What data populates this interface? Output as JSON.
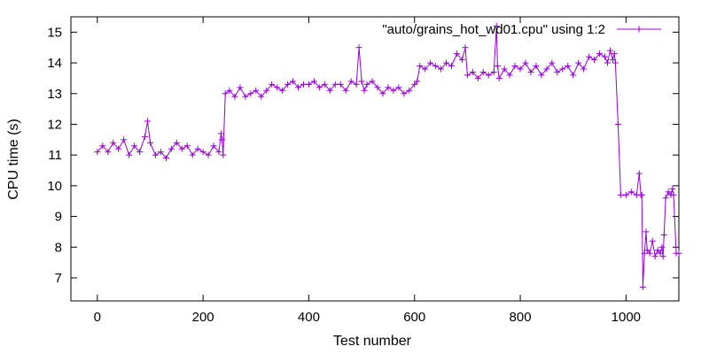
{
  "chart_data": {
    "type": "line",
    "title": "",
    "xlabel": "Test number",
    "ylabel": "CPU time (s)",
    "xlim": [
      -50,
      1100
    ],
    "ylim": [
      6.25,
      15.5
    ],
    "xticks": [
      0,
      200,
      400,
      600,
      800,
      1000
    ],
    "yticks": [
      7,
      8,
      9,
      10,
      11,
      12,
      13,
      14,
      15
    ],
    "xtick_labels": [
      "0",
      "200",
      "400",
      "600",
      "800",
      "1000"
    ],
    "ytick_labels": [
      "7",
      "8",
      "9",
      "10",
      "11",
      "12",
      "13",
      "14",
      "15"
    ],
    "grid": false,
    "legend_position": "top-right",
    "series": [
      {
        "name": "\"auto/grains_hot_wd01.cpu\" using 1:2",
        "color": "#9400d3",
        "marker": "plus",
        "x": [
          0,
          10,
          20,
          30,
          40,
          50,
          60,
          70,
          80,
          90,
          95,
          100,
          110,
          120,
          130,
          140,
          150,
          160,
          170,
          180,
          190,
          200,
          210,
          220,
          230,
          234,
          236,
          238,
          242,
          250,
          260,
          270,
          280,
          290,
          300,
          310,
          320,
          330,
          340,
          350,
          360,
          370,
          380,
          390,
          400,
          410,
          420,
          430,
          440,
          450,
          460,
          470,
          480,
          490,
          495,
          500,
          505,
          510,
          520,
          530,
          540,
          550,
          560,
          570,
          580,
          590,
          600,
          605,
          610,
          620,
          630,
          640,
          650,
          660,
          670,
          680,
          690,
          696,
          700,
          710,
          720,
          730,
          740,
          750,
          755,
          757,
          760,
          770,
          780,
          790,
          800,
          810,
          820,
          830,
          840,
          850,
          860,
          870,
          880,
          890,
          900,
          910,
          920,
          930,
          940,
          950,
          960,
          965,
          970,
          975,
          978,
          980,
          985,
          990,
          1000,
          1010,
          1020,
          1025,
          1028,
          1030,
          1032,
          1035,
          1038,
          1040,
          1045,
          1050,
          1055,
          1060,
          1065,
          1068,
          1070,
          1072,
          1075,
          1080,
          1085,
          1088,
          1090,
          1095,
          1100
        ],
        "y": [
          11.1,
          11.3,
          11.1,
          11.4,
          11.2,
          11.5,
          11.0,
          11.3,
          11.1,
          11.6,
          12.1,
          11.4,
          11.0,
          11.1,
          10.9,
          11.2,
          11.4,
          11.2,
          11.3,
          11.0,
          11.2,
          11.1,
          11.0,
          11.3,
          11.1,
          11.7,
          11.5,
          11.0,
          13.0,
          13.1,
          12.9,
          13.2,
          12.9,
          13.0,
          13.1,
          12.9,
          13.1,
          13.3,
          13.2,
          13.1,
          13.3,
          13.4,
          13.2,
          13.3,
          13.3,
          13.4,
          13.2,
          13.3,
          13.1,
          13.3,
          13.3,
          13.1,
          13.4,
          13.3,
          14.5,
          13.4,
          13.1,
          13.3,
          13.4,
          13.2,
          13.0,
          13.2,
          13.1,
          13.2,
          13.0,
          13.1,
          13.3,
          13.4,
          13.9,
          13.8,
          14.0,
          13.9,
          13.8,
          14.0,
          13.9,
          14.3,
          14.1,
          14.5,
          13.6,
          13.7,
          13.5,
          13.7,
          13.6,
          13.7,
          15.2,
          13.9,
          13.5,
          13.8,
          13.6,
          13.9,
          13.8,
          14.0,
          13.7,
          13.9,
          13.6,
          13.8,
          14.0,
          13.7,
          13.8,
          13.9,
          13.6,
          14.0,
          13.8,
          14.2,
          14.1,
          14.3,
          14.2,
          14.0,
          14.4,
          14.1,
          14.3,
          14.0,
          12.0,
          9.7,
          9.7,
          9.8,
          9.7,
          10.4,
          9.7,
          9.7,
          6.7,
          7.8,
          8.5,
          7.9,
          7.8,
          8.2,
          7.7,
          7.9,
          7.8,
          8.0,
          7.7,
          8.4,
          9.6,
          9.8,
          9.7,
          9.9,
          9.7,
          7.8,
          7.8
        ]
      }
    ]
  }
}
